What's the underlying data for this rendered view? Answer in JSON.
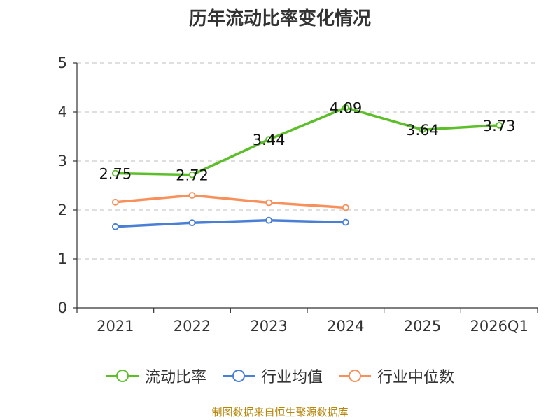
{
  "chart_data": {
    "type": "line",
    "title": "历年流动比率变化情况",
    "categories": [
      "2021",
      "2022",
      "2023",
      "2024",
      "2025",
      "2026Q1"
    ],
    "ylim": [
      0,
      5
    ],
    "yticks": [
      "0",
      "1",
      "2",
      "3",
      "4",
      "5"
    ],
    "grid": true,
    "legend_position": "bottom",
    "series": [
      {
        "name": "流动比率",
        "color": "#5cbf2a",
        "values": [
          2.75,
          2.72,
          3.44,
          4.09,
          3.64,
          3.73
        ],
        "labels": [
          "2.75",
          "2.72",
          "3.44",
          "4.09",
          "3.64",
          "3.73"
        ]
      },
      {
        "name": "行业均值",
        "color": "#4a7fd6",
        "values": [
          1.66,
          1.74,
          1.79,
          1.75,
          null,
          null
        ]
      },
      {
        "name": "行业中位数",
        "color": "#f7905a",
        "values": [
          2.16,
          2.3,
          2.15,
          2.05,
          null,
          null
        ]
      }
    ]
  },
  "footer": {
    "source": "制图数据来自恒生聚源数据库"
  }
}
